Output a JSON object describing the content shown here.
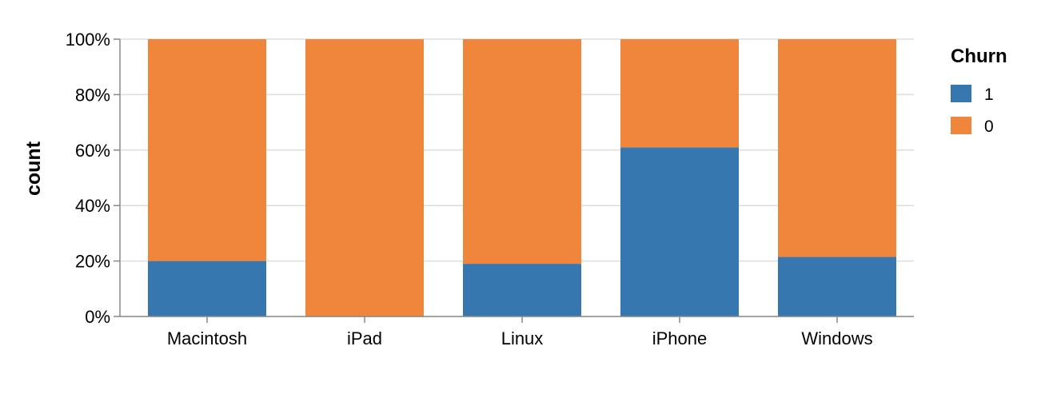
{
  "chart_data": {
    "type": "bar",
    "stacked": "normalize",
    "categories": [
      "Macintosh",
      "iPad",
      "Linux",
      "iPhone",
      "Windows"
    ],
    "series": [
      {
        "name": "1",
        "color": "#3777af",
        "values": [
          0.2,
          0.0,
          0.19,
          0.61,
          0.215
        ]
      },
      {
        "name": "0",
        "color": "#f0863b",
        "values": [
          0.8,
          1.0,
          0.81,
          0.39,
          0.785
        ]
      }
    ],
    "title": "",
    "xlabel": "",
    "ylabel": "count",
    "ylim": [
      0,
      1
    ],
    "y_ticks": [
      "0%",
      "20%",
      "40%",
      "60%",
      "80%",
      "100%"
    ],
    "y_tick_values": [
      0,
      0.2,
      0.4,
      0.6,
      0.8,
      1.0
    ],
    "grid": true,
    "legend": {
      "title": "Churn",
      "position": "right",
      "entries": [
        "1",
        "0"
      ]
    }
  }
}
